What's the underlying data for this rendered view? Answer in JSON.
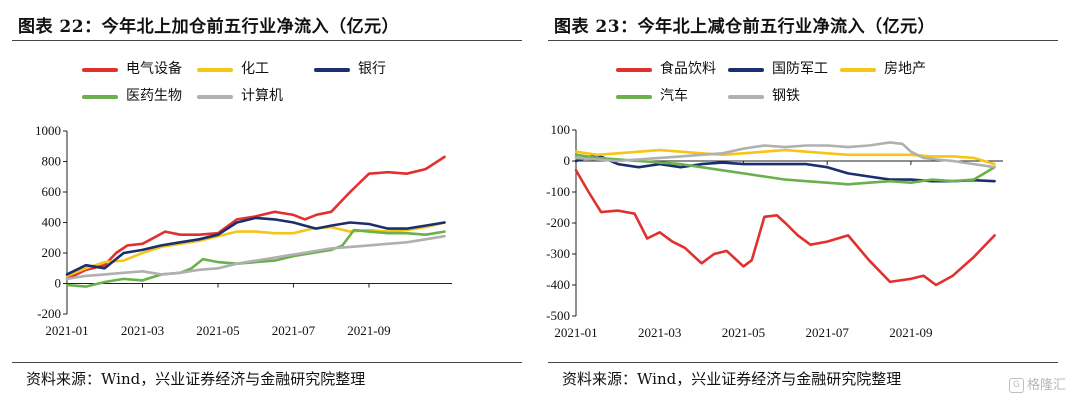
{
  "charts": [
    {
      "title": "图表 22：今年北上加仓前五行业净流入（亿元）",
      "source": "资料来源：Wind，兴业证券经济与金融研究院整理"
    },
    {
      "title": "图表 23：今年北上减仓前五行业净流入（亿元）",
      "source": "资料来源：Wind，兴业证券经济与金融研究院整理"
    }
  ],
  "watermark": {
    "icon": "gelonghui-logo-icon",
    "text": "格隆汇"
  },
  "chart_data": [
    {
      "type": "line",
      "ylim": [
        -200,
        1000
      ],
      "yticks": [
        "1000",
        "800",
        "600",
        "400",
        "200",
        "0",
        "-200"
      ],
      "ytick_values": [
        1000,
        800,
        600,
        400,
        200,
        0,
        -200
      ],
      "xticks": [
        "2021-01",
        "2021-03",
        "2021-05",
        "2021-07",
        "2021-09"
      ],
      "xtick_values": [
        0,
        2,
        4,
        6,
        8
      ],
      "xlim": [
        0,
        10.2
      ],
      "legend": "top",
      "grid": false,
      "series": [
        {
          "name": "电气设备",
          "color": "#e0312f",
          "points": [
            [
              0,
              30
            ],
            [
              0.5,
              90
            ],
            [
              1,
              120
            ],
            [
              1.3,
              200
            ],
            [
              1.6,
              250
            ],
            [
              2,
              260
            ],
            [
              2.3,
              300
            ],
            [
              2.6,
              340
            ],
            [
              3,
              320
            ],
            [
              3.5,
              320
            ],
            [
              4,
              330
            ],
            [
              4.5,
              420
            ],
            [
              5,
              440
            ],
            [
              5.5,
              470
            ],
            [
              6,
              450
            ],
            [
              6.3,
              420
            ],
            [
              6.6,
              450
            ],
            [
              7,
              470
            ],
            [
              7.5,
              600
            ],
            [
              8,
              720
            ],
            [
              8.5,
              730
            ],
            [
              9,
              720
            ],
            [
              9.5,
              750
            ],
            [
              10,
              830
            ]
          ]
        },
        {
          "name": "化工",
          "color": "#f5c518",
          "points": [
            [
              0,
              50
            ],
            [
              0.5,
              100
            ],
            [
              1,
              140
            ],
            [
              1.5,
              150
            ],
            [
              2,
              200
            ],
            [
              2.5,
              240
            ],
            [
              3,
              260
            ],
            [
              3.5,
              280
            ],
            [
              4,
              310
            ],
            [
              4.5,
              340
            ],
            [
              5,
              340
            ],
            [
              5.5,
              330
            ],
            [
              6,
              330
            ],
            [
              6.5,
              360
            ],
            [
              7,
              370
            ],
            [
              7.5,
              340
            ],
            [
              8,
              350
            ],
            [
              8.5,
              340
            ],
            [
              9,
              350
            ],
            [
              9.5,
              370
            ],
            [
              10,
              400
            ]
          ]
        },
        {
          "name": "银行",
          "color": "#1b2f6e",
          "points": [
            [
              0,
              60
            ],
            [
              0.5,
              120
            ],
            [
              1,
              100
            ],
            [
              1.5,
              200
            ],
            [
              2,
              220
            ],
            [
              2.5,
              250
            ],
            [
              3,
              270
            ],
            [
              3.5,
              290
            ],
            [
              4,
              320
            ],
            [
              4.5,
              400
            ],
            [
              5,
              430
            ],
            [
              5.5,
              420
            ],
            [
              6,
              400
            ],
            [
              6.3,
              380
            ],
            [
              6.6,
              360
            ],
            [
              7,
              380
            ],
            [
              7.5,
              400
            ],
            [
              8,
              390
            ],
            [
              8.5,
              360
            ],
            [
              9,
              360
            ],
            [
              9.5,
              380
            ],
            [
              10,
              400
            ]
          ]
        },
        {
          "name": "医药生物",
          "color": "#6ab04c",
          "points": [
            [
              0,
              -10
            ],
            [
              0.5,
              -20
            ],
            [
              1,
              10
            ],
            [
              1.5,
              30
            ],
            [
              2,
              20
            ],
            [
              2.5,
              60
            ],
            [
              3,
              70
            ],
            [
              3.3,
              100
            ],
            [
              3.6,
              160
            ],
            [
              4,
              140
            ],
            [
              4.5,
              130
            ],
            [
              5,
              140
            ],
            [
              5.5,
              150
            ],
            [
              6,
              180
            ],
            [
              6.5,
              200
            ],
            [
              7,
              220
            ],
            [
              7.3,
              250
            ],
            [
              7.6,
              350
            ],
            [
              8,
              340
            ],
            [
              8.5,
              330
            ],
            [
              9,
              330
            ],
            [
              9.5,
              320
            ],
            [
              10,
              340
            ]
          ]
        },
        {
          "name": "计算机",
          "color": "#b0b0b0",
          "points": [
            [
              0,
              30
            ],
            [
              0.5,
              50
            ],
            [
              1,
              60
            ],
            [
              1.5,
              70
            ],
            [
              2,
              80
            ],
            [
              2.5,
              60
            ],
            [
              3,
              70
            ],
            [
              3.5,
              90
            ],
            [
              4,
              100
            ],
            [
              4.5,
              130
            ],
            [
              5,
              150
            ],
            [
              5.5,
              170
            ],
            [
              6,
              190
            ],
            [
              6.5,
              210
            ],
            [
              7,
              230
            ],
            [
              7.5,
              240
            ],
            [
              8,
              250
            ],
            [
              8.5,
              260
            ],
            [
              9,
              270
            ],
            [
              9.5,
              290
            ],
            [
              10,
              310
            ]
          ]
        }
      ]
    },
    {
      "type": "line",
      "ylim": [
        -500,
        100
      ],
      "yticks": [
        "100",
        "0",
        "-100",
        "-200",
        "-300",
        "-400",
        "-500"
      ],
      "ytick_values": [
        100,
        0,
        -100,
        -200,
        -300,
        -400,
        -500
      ],
      "xticks": [
        "2021-01",
        "2021-03",
        "2021-05",
        "2021-07",
        "2021-09"
      ],
      "xtick_values": [
        0,
        2,
        4,
        6,
        8
      ],
      "xlim": [
        0,
        10.2
      ],
      "legend": "top",
      "grid": false,
      "series": [
        {
          "name": "食品饮料",
          "color": "#e0312f",
          "points": [
            [
              0,
              -30
            ],
            [
              0.3,
              -100
            ],
            [
              0.6,
              -165
            ],
            [
              1,
              -160
            ],
            [
              1.4,
              -170
            ],
            [
              1.7,
              -250
            ],
            [
              2,
              -230
            ],
            [
              2.3,
              -260
            ],
            [
              2.6,
              -280
            ],
            [
              3,
              -330
            ],
            [
              3.3,
              -300
            ],
            [
              3.6,
              -290
            ],
            [
              4,
              -340
            ],
            [
              4.2,
              -320
            ],
            [
              4.5,
              -180
            ],
            [
              4.8,
              -175
            ],
            [
              5,
              -200
            ],
            [
              5.3,
              -240
            ],
            [
              5.6,
              -270
            ],
            [
              6,
              -260
            ],
            [
              6.5,
              -240
            ],
            [
              7,
              -320
            ],
            [
              7.5,
              -390
            ],
            [
              8,
              -380
            ],
            [
              8.3,
              -370
            ],
            [
              8.6,
              -400
            ],
            [
              9,
              -370
            ],
            [
              9.5,
              -310
            ],
            [
              10,
              -240
            ]
          ]
        },
        {
          "name": "国防军工",
          "color": "#1b2f6e",
          "points": [
            [
              0,
              0
            ],
            [
              0.5,
              20
            ],
            [
              1,
              -10
            ],
            [
              1.5,
              -20
            ],
            [
              2,
              -10
            ],
            [
              2.5,
              -20
            ],
            [
              3,
              -10
            ],
            [
              3.5,
              -5
            ],
            [
              4,
              -10
            ],
            [
              4.5,
              -10
            ],
            [
              5,
              -10
            ],
            [
              5.5,
              -10
            ],
            [
              6,
              -20
            ],
            [
              6.5,
              -40
            ],
            [
              7,
              -50
            ],
            [
              7.5,
              -60
            ],
            [
              8,
              -60
            ],
            [
              8.5,
              -65
            ],
            [
              9,
              -65
            ],
            [
              9.5,
              -62
            ],
            [
              10,
              -65
            ]
          ]
        },
        {
          "name": "房地产",
          "color": "#f5c518",
          "points": [
            [
              0,
              30
            ],
            [
              0.5,
              20
            ],
            [
              1,
              25
            ],
            [
              1.5,
              30
            ],
            [
              2,
              35
            ],
            [
              2.5,
              30
            ],
            [
              3,
              25
            ],
            [
              3.5,
              20
            ],
            [
              4,
              25
            ],
            [
              4.5,
              30
            ],
            [
              5,
              35
            ],
            [
              5.5,
              30
            ],
            [
              6,
              25
            ],
            [
              6.5,
              20
            ],
            [
              7,
              20
            ],
            [
              7.5,
              20
            ],
            [
              8,
              20
            ],
            [
              8.5,
              15
            ],
            [
              9,
              15
            ],
            [
              9.5,
              10
            ],
            [
              10,
              -10
            ]
          ]
        },
        {
          "name": "汽车",
          "color": "#6ab04c",
          "points": [
            [
              0,
              20
            ],
            [
              0.5,
              10
            ],
            [
              1,
              5
            ],
            [
              1.5,
              0
            ],
            [
              2,
              -5
            ],
            [
              2.5,
              -10
            ],
            [
              3,
              -20
            ],
            [
              3.5,
              -30
            ],
            [
              4,
              -40
            ],
            [
              4.5,
              -50
            ],
            [
              5,
              -60
            ],
            [
              5.5,
              -65
            ],
            [
              6,
              -70
            ],
            [
              6.5,
              -75
            ],
            [
              7,
              -70
            ],
            [
              7.5,
              -65
            ],
            [
              8,
              -70
            ],
            [
              8.5,
              -60
            ],
            [
              9,
              -65
            ],
            [
              9.5,
              -60
            ],
            [
              10,
              -20
            ]
          ]
        },
        {
          "name": "钢铁",
          "color": "#b0b0b0",
          "points": [
            [
              0,
              10
            ],
            [
              0.5,
              5
            ],
            [
              1,
              0
            ],
            [
              1.5,
              5
            ],
            [
              2,
              10
            ],
            [
              2.5,
              15
            ],
            [
              3,
              20
            ],
            [
              3.5,
              25
            ],
            [
              4,
              40
            ],
            [
              4.5,
              50
            ],
            [
              5,
              45
            ],
            [
              5.5,
              50
            ],
            [
              6,
              50
            ],
            [
              6.5,
              45
            ],
            [
              7,
              50
            ],
            [
              7.5,
              60
            ],
            [
              7.8,
              55
            ],
            [
              8,
              30
            ],
            [
              8.3,
              10
            ],
            [
              8.6,
              5
            ],
            [
              9,
              0
            ],
            [
              9.5,
              -10
            ],
            [
              10,
              -20
            ]
          ]
        }
      ]
    }
  ]
}
